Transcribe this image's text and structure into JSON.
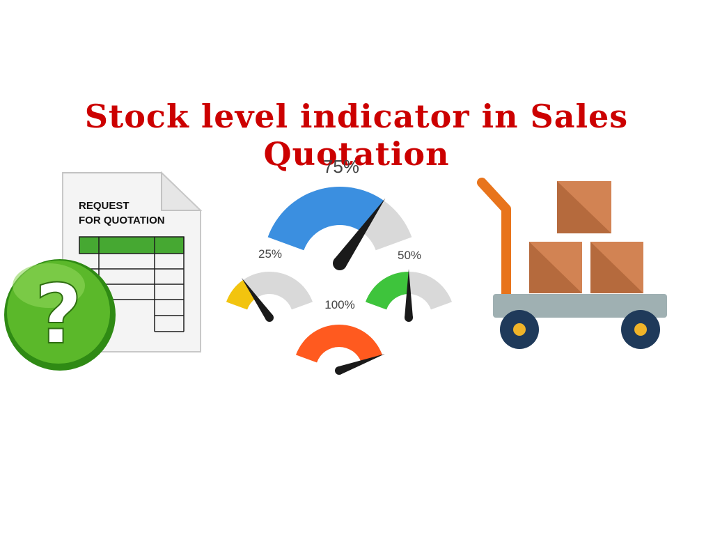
{
  "title": "Stock level indicator in Sales Quotation",
  "document_icon": {
    "heading_line1": "REQUEST",
    "heading_line2": "FOR QUOTATION",
    "badge_icon": "question-mark-icon"
  },
  "gauges": [
    {
      "label": "75%",
      "level": 0.75,
      "color": "#3b8fe0"
    },
    {
      "label": "25%",
      "level": 0.25,
      "color": "#f2c40f"
    },
    {
      "label": "50%",
      "level": 0.5,
      "color": "#3ec43c"
    },
    {
      "label": "100%",
      "level": 1.0,
      "color": "#ff5a1f"
    }
  ],
  "cart_icon": "hand-truck-with-boxes-icon",
  "colors": {
    "title": "#cc0000",
    "doc_table_header": "#46a832",
    "question_badge": "#5bb82a",
    "box": "#c97a4a",
    "cart_handle": "#e8741c",
    "cart_deck": "#9fb0b2",
    "wheel": "#1f3a5a"
  }
}
